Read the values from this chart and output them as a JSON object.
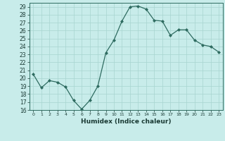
{
  "x": [
    0,
    1,
    2,
    3,
    4,
    5,
    6,
    7,
    8,
    9,
    10,
    11,
    12,
    13,
    14,
    15,
    16,
    17,
    18,
    19,
    20,
    21,
    22,
    23
  ],
  "y": [
    20.5,
    18.8,
    19.7,
    19.5,
    18.9,
    17.2,
    16.1,
    17.2,
    19.0,
    23.2,
    24.8,
    27.2,
    29.0,
    29.1,
    28.7,
    27.3,
    27.2,
    25.4,
    26.1,
    26.1,
    24.8,
    24.2,
    24.0,
    23.3
  ],
  "line_color": "#2e6b60",
  "marker": "D",
  "marker_size": 2.0,
  "bg_color": "#c8ecea",
  "grid_color": "#a8d4d0",
  "xlabel": "Humidex (Indice chaleur)",
  "xlim": [
    -0.5,
    23.5
  ],
  "ylim": [
    16,
    29.5
  ],
  "yticks": [
    16,
    17,
    18,
    19,
    20,
    21,
    22,
    23,
    24,
    25,
    26,
    27,
    28,
    29
  ],
  "xticks": [
    0,
    1,
    2,
    3,
    4,
    5,
    6,
    7,
    8,
    9,
    10,
    11,
    12,
    13,
    14,
    15,
    16,
    17,
    18,
    19,
    20,
    21,
    22,
    23
  ]
}
